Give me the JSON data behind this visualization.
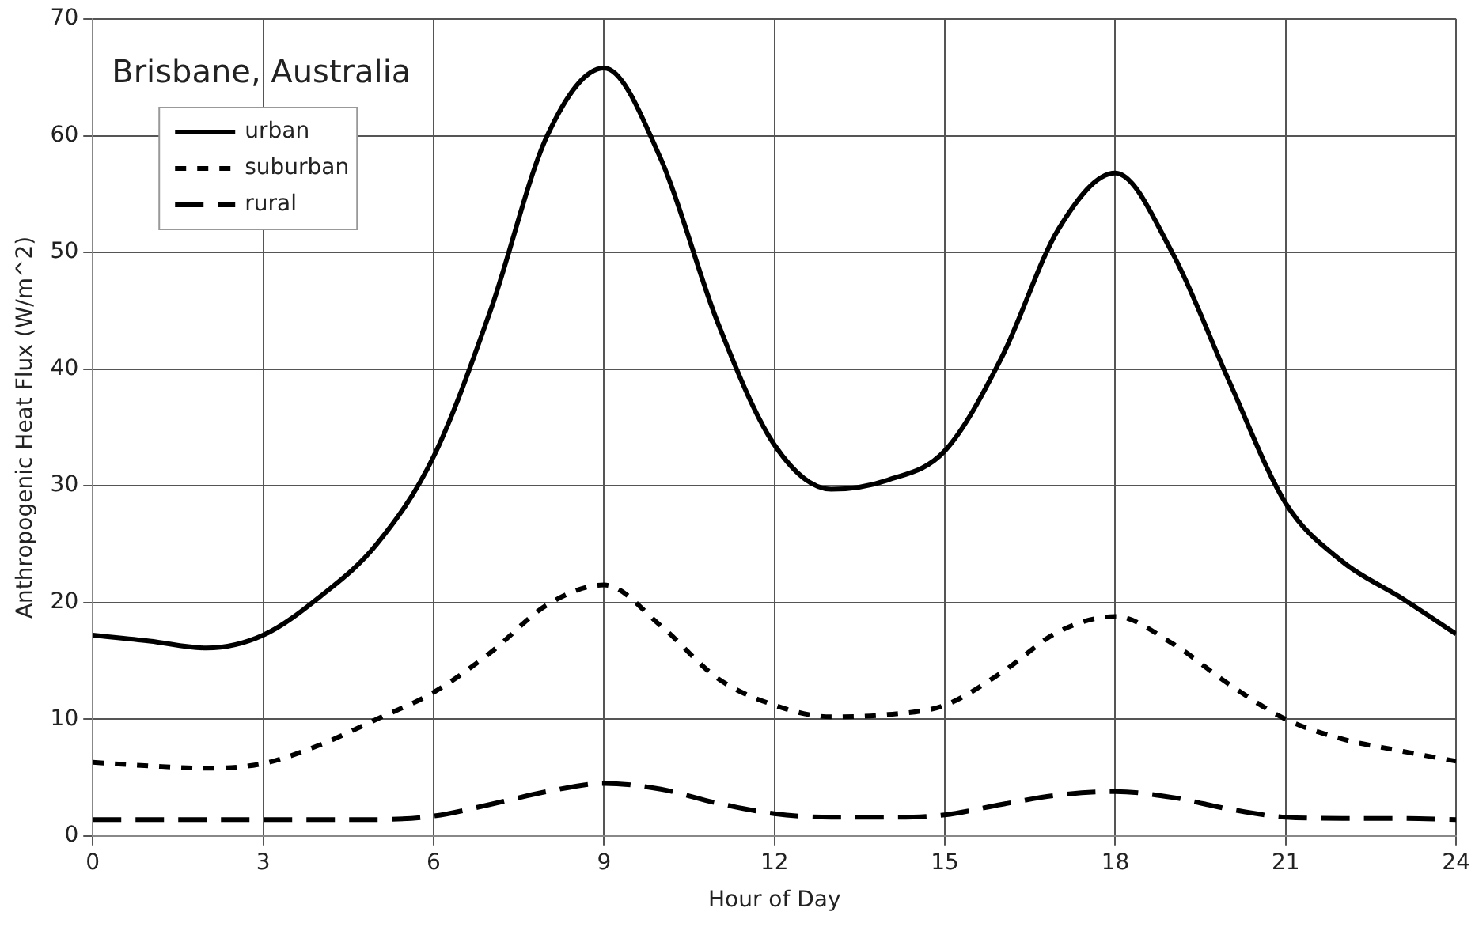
{
  "chart_data": {
    "type": "line",
    "title": "Brisbane, Australia",
    "xlabel": "Hour of Day",
    "ylabel": "Anthropogenic Heat Flux (W/m^2)",
    "x": [
      0,
      1,
      2,
      3,
      4,
      5,
      6,
      7,
      8,
      9,
      10,
      11,
      12,
      13,
      14,
      15,
      16,
      17,
      18,
      19,
      20,
      21,
      22,
      23,
      24
    ],
    "series": [
      {
        "name": "urban",
        "color": "#000000",
        "line_style": "solid",
        "values": [
          17.2,
          16.7,
          16.1,
          17.2,
          20.5,
          25,
          32.5,
          45,
          60,
          65.8,
          58,
          44,
          33.5,
          29.7,
          30.5,
          33,
          41,
          52,
          56.8,
          50,
          39,
          28.5,
          23.5,
          20.5,
          17.3
        ]
      },
      {
        "name": "suburban",
        "color": "#000000",
        "line_style": "dotted",
        "values": [
          6.3,
          6,
          5.8,
          6.2,
          7.8,
          10,
          12.3,
          15.7,
          19.8,
          21.5,
          18,
          13.5,
          11.2,
          10.2,
          10.4,
          11.2,
          14,
          17.5,
          18.8,
          16.5,
          13,
          10,
          8.3,
          7.3,
          6.4
        ]
      },
      {
        "name": "rural",
        "color": "#000000",
        "line_style": "dashed",
        "values": [
          1.4,
          1.4,
          1.4,
          1.4,
          1.4,
          1.4,
          1.7,
          2.7,
          3.8,
          4.5,
          4,
          2.8,
          1.9,
          1.6,
          1.6,
          1.8,
          2.7,
          3.5,
          3.8,
          3.3,
          2.3,
          1.6,
          1.5,
          1.5,
          1.4
        ]
      }
    ],
    "xlim": [
      0,
      24
    ],
    "xticks": [
      0,
      3,
      6,
      9,
      12,
      15,
      18,
      21,
      24
    ],
    "ylim": [
      0,
      70
    ],
    "yticks": [
      0,
      10,
      20,
      30,
      40,
      50,
      60,
      70
    ],
    "grid": true,
    "legend": "top left",
    "marker": "none"
  }
}
